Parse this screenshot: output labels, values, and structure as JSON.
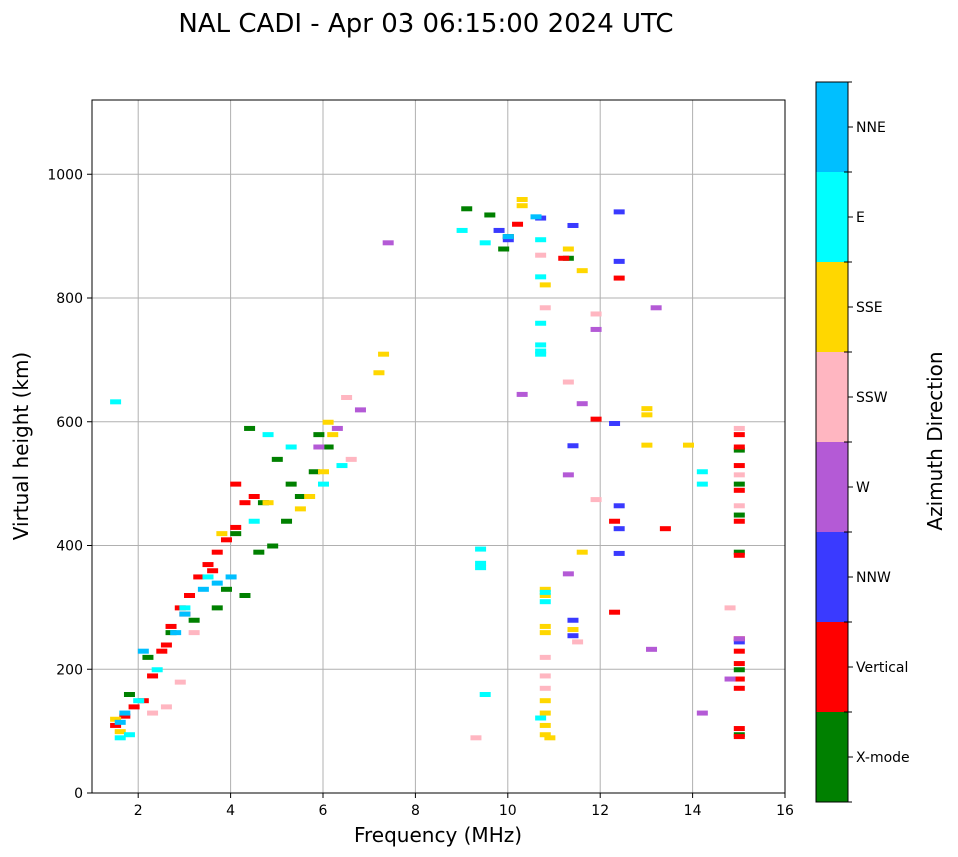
{
  "chart_data": {
    "type": "scatter",
    "title": "NAL CADI - Apr 03 06:15:00 2024 UTC",
    "xlabel": "Frequency (MHz)",
    "ylabel": "Virtual height (km)",
    "xlim": [
      1,
      16
    ],
    "ylim": [
      0,
      1120
    ],
    "xticks": [
      2,
      4,
      6,
      8,
      10,
      12,
      14,
      16
    ],
    "yticks": [
      0,
      200,
      400,
      600,
      800,
      1000
    ],
    "grid": true,
    "colorbar": {
      "title": "Azimuth Direction",
      "categories": [
        {
          "name": "X-mode",
          "color": "#008000"
        },
        {
          "name": "Vertical",
          "color": "#ff0000"
        },
        {
          "name": "NNW",
          "color": "#3a3aff"
        },
        {
          "name": "W",
          "color": "#b45ad6"
        },
        {
          "name": "SSW",
          "color": "#ffb6c1"
        },
        {
          "name": "SSE",
          "color": "#ffd700"
        },
        {
          "name": "E",
          "color": "#00ffff"
        },
        {
          "name": "NNE",
          "color": "#00bfff"
        }
      ]
    },
    "series": [
      {
        "name": "X-mode",
        "points": [
          [
            9.1,
            945
          ],
          [
            9.6,
            935
          ],
          [
            10.0,
            900
          ],
          [
            9.9,
            880
          ],
          [
            11.3,
            865
          ],
          [
            15.0,
            555
          ],
          [
            15.0,
            500
          ],
          [
            15.0,
            450
          ],
          [
            15.0,
            390
          ],
          [
            15.0,
            200
          ],
          [
            15.0,
            95
          ],
          [
            3.9,
            330
          ],
          [
            4.3,
            320
          ],
          [
            4.6,
            390
          ],
          [
            4.9,
            400
          ],
          [
            5.2,
            440
          ],
          [
            5.5,
            480
          ],
          [
            5.8,
            520
          ],
          [
            6.1,
            560
          ],
          [
            5.0,
            540
          ],
          [
            4.4,
            590
          ],
          [
            3.7,
            300
          ],
          [
            3.2,
            280
          ],
          [
            2.7,
            260
          ],
          [
            2.2,
            220
          ],
          [
            1.8,
            160
          ],
          [
            4.1,
            420
          ],
          [
            4.7,
            470
          ],
          [
            5.3,
            500
          ],
          [
            5.9,
            580
          ]
        ]
      },
      {
        "name": "Vertical",
        "points": [
          [
            10.2,
            920
          ],
          [
            11.2,
            865
          ],
          [
            12.4,
            833
          ],
          [
            11.9,
            605
          ],
          [
            12.3,
            440
          ],
          [
            12.3,
            293
          ],
          [
            13.4,
            428
          ],
          [
            15.0,
            580
          ],
          [
            15.0,
            560
          ],
          [
            15.0,
            530
          ],
          [
            15.0,
            490
          ],
          [
            15.0,
            440
          ],
          [
            15.0,
            385
          ],
          [
            15.0,
            250
          ],
          [
            15.0,
            230
          ],
          [
            15.0,
            210
          ],
          [
            15.0,
            185
          ],
          [
            15.0,
            170
          ],
          [
            15.0,
            105
          ],
          [
            15.0,
            92
          ],
          [
            1.5,
            110
          ],
          [
            1.7,
            125
          ],
          [
            1.9,
            140
          ],
          [
            2.1,
            150
          ],
          [
            2.3,
            190
          ],
          [
            2.5,
            230
          ],
          [
            2.7,
            270
          ],
          [
            2.9,
            300
          ],
          [
            3.1,
            320
          ],
          [
            3.3,
            350
          ],
          [
            3.5,
            370
          ],
          [
            3.7,
            390
          ],
          [
            3.9,
            410
          ],
          [
            4.1,
            430
          ],
          [
            4.3,
            470
          ],
          [
            4.5,
            480
          ],
          [
            4.1,
            500
          ],
          [
            3.6,
            360
          ],
          [
            3.0,
            290
          ],
          [
            2.6,
            240
          ]
        ]
      },
      {
        "name": "NNW",
        "points": [
          [
            9.8,
            910
          ],
          [
            10.0,
            895
          ],
          [
            11.4,
            918
          ],
          [
            12.4,
            940
          ],
          [
            12.4,
            860
          ],
          [
            12.3,
            598
          ],
          [
            12.4,
            465
          ],
          [
            12.4,
            428
          ],
          [
            12.4,
            388
          ],
          [
            11.4,
            280
          ],
          [
            11.4,
            255
          ],
          [
            15.0,
            245
          ],
          [
            10.7,
            930
          ],
          [
            11.4,
            562
          ]
        ]
      },
      {
        "name": "W",
        "points": [
          [
            7.4,
            890
          ],
          [
            10.3,
            645
          ],
          [
            11.6,
            630
          ],
          [
            11.9,
            750
          ],
          [
            13.2,
            785
          ],
          [
            11.3,
            515
          ],
          [
            11.3,
            355
          ],
          [
            13.1,
            233
          ],
          [
            14.2,
            130
          ],
          [
            14.8,
            185
          ],
          [
            15.0,
            250
          ],
          [
            5.9,
            560
          ],
          [
            6.3,
            590
          ],
          [
            6.8,
            620
          ]
        ]
      },
      {
        "name": "SSW",
        "points": [
          [
            10.7,
            870
          ],
          [
            10.8,
            785
          ],
          [
            11.9,
            775
          ],
          [
            11.3,
            665
          ],
          [
            11.9,
            475
          ],
          [
            11.5,
            245
          ],
          [
            14.8,
            300
          ],
          [
            9.3,
            90
          ],
          [
            2.3,
            130
          ],
          [
            2.6,
            140
          ],
          [
            2.9,
            180
          ],
          [
            3.2,
            260
          ],
          [
            6.5,
            640
          ],
          [
            6.6,
            540
          ],
          [
            10.8,
            190
          ],
          [
            10.8,
            170
          ],
          [
            10.8,
            220
          ],
          [
            15.0,
            590
          ],
          [
            15.0,
            515
          ],
          [
            15.0,
            465
          ]
        ]
      },
      {
        "name": "SSE",
        "points": [
          [
            10.3,
            960
          ],
          [
            10.3,
            950
          ],
          [
            10.8,
            822
          ],
          [
            11.6,
            845
          ],
          [
            11.3,
            880
          ],
          [
            13.0,
            622
          ],
          [
            13.0,
            612
          ],
          [
            13.0,
            563
          ],
          [
            13.9,
            563
          ],
          [
            11.6,
            390
          ],
          [
            11.4,
            265
          ],
          [
            10.8,
            330
          ],
          [
            10.8,
            320
          ],
          [
            10.8,
            270
          ],
          [
            10.8,
            260
          ],
          [
            10.8,
            150
          ],
          [
            10.8,
            130
          ],
          [
            10.8,
            110
          ],
          [
            10.8,
            95
          ],
          [
            10.9,
            90
          ],
          [
            7.3,
            710
          ],
          [
            7.2,
            680
          ],
          [
            6.1,
            600
          ],
          [
            6.2,
            580
          ],
          [
            6.0,
            520
          ],
          [
            5.7,
            480
          ],
          [
            5.5,
            460
          ],
          [
            4.8,
            470
          ],
          [
            3.8,
            420
          ],
          [
            1.5,
            120
          ],
          [
            1.6,
            100
          ]
        ]
      },
      {
        "name": "E",
        "points": [
          [
            9.0,
            910
          ],
          [
            9.5,
            890
          ],
          [
            10.7,
            895
          ],
          [
            10.7,
            835
          ],
          [
            10.7,
            760
          ],
          [
            10.7,
            725
          ],
          [
            10.7,
            715
          ],
          [
            10.7,
            710
          ],
          [
            9.4,
            395
          ],
          [
            9.4,
            372
          ],
          [
            9.4,
            365
          ],
          [
            10.8,
            325
          ],
          [
            10.8,
            310
          ],
          [
            14.2,
            520
          ],
          [
            14.2,
            500
          ],
          [
            9.5,
            160
          ],
          [
            10.7,
            122
          ],
          [
            1.5,
            633
          ],
          [
            4.8,
            580
          ],
          [
            5.3,
            560
          ],
          [
            6.4,
            530
          ],
          [
            6.0,
            500
          ],
          [
            4.5,
            440
          ],
          [
            3.5,
            350
          ],
          [
            3.0,
            300
          ],
          [
            2.4,
            200
          ],
          [
            2.0,
            150
          ],
          [
            1.6,
            90
          ],
          [
            1.8,
            95
          ]
        ]
      },
      {
        "name": "NNE",
        "points": [
          [
            10.6,
            932
          ],
          [
            10.0,
            900
          ],
          [
            3.4,
            330
          ],
          [
            3.0,
            290
          ],
          [
            2.8,
            260
          ],
          [
            2.1,
            230
          ],
          [
            1.7,
            130
          ],
          [
            1.6,
            115
          ],
          [
            4.0,
            350
          ],
          [
            3.7,
            340
          ]
        ]
      }
    ]
  }
}
